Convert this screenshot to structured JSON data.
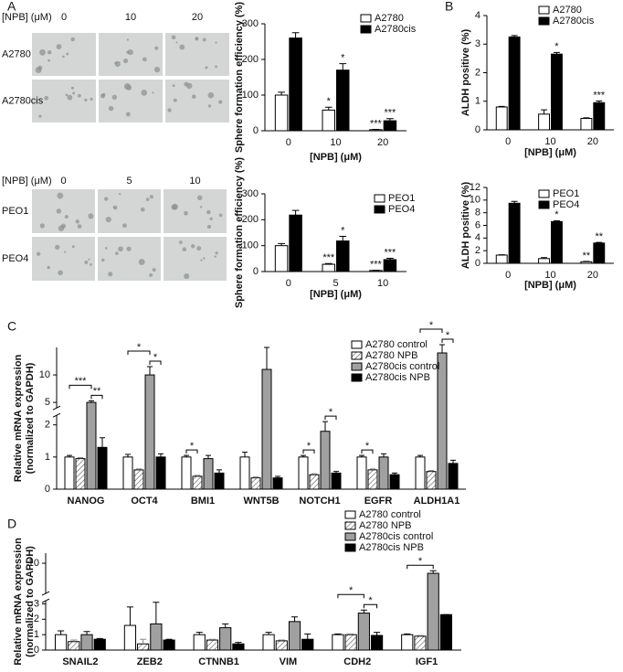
{
  "panel_labels": [
    "A",
    "B",
    "C",
    "D"
  ],
  "image_panels": [
    {
      "header": "[NPB] (μM)",
      "columns": [
        "0",
        "10",
        "20"
      ],
      "rows": [
        "A2780",
        "A2780cis"
      ]
    },
    {
      "header": "[NPB] (μM)",
      "columns": [
        "0",
        "5",
        "10"
      ],
      "rows": [
        "PEO1",
        "PEO4"
      ]
    }
  ],
  "chart_data": [
    {
      "type": "bar",
      "ylabel": "Sphere formation efficiency (%)",
      "xlabel": "[NPB] (μM)",
      "categories": [
        "0",
        "10",
        "20"
      ],
      "series": [
        {
          "name": "A2780",
          "color": "#ffffff",
          "values": [
            100,
            58,
            3
          ],
          "errors": [
            8,
            8,
            1
          ],
          "significance": [
            null,
            "*",
            "***"
          ]
        },
        {
          "name": "A2780cis",
          "color": "#000000",
          "values": [
            260,
            170,
            28
          ],
          "errors": [
            15,
            18,
            6
          ],
          "significance": [
            null,
            "*",
            "***"
          ]
        }
      ],
      "ylim": [
        0,
        300
      ],
      "yticks": [
        0,
        100,
        200,
        300
      ],
      "legend": "upper right"
    },
    {
      "type": "bar",
      "ylabel": "ALDH positive (%)",
      "xlabel": "[NPB] (μM)",
      "categories": [
        "0",
        "10",
        "20"
      ],
      "series": [
        {
          "name": "A2780",
          "color": "#ffffff",
          "values": [
            0.8,
            0.55,
            0.4
          ],
          "errors": [
            0.02,
            0.15,
            0.02
          ],
          "significance": [
            null,
            null,
            null
          ]
        },
        {
          "name": "A2780cis",
          "color": "#000000",
          "values": [
            3.25,
            2.65,
            0.95
          ],
          "errors": [
            0.05,
            0.06,
            0.06
          ],
          "significance": [
            null,
            "*",
            "***"
          ]
        }
      ],
      "ylim": [
        0,
        4
      ],
      "yticks": [
        0,
        1,
        2,
        3,
        4
      ],
      "legend": "upper right"
    },
    {
      "type": "bar",
      "ylabel": "Sphere formation efficiency (%)",
      "xlabel": "[NPB] (μM)",
      "categories": [
        "0",
        "5",
        "10"
      ],
      "series": [
        {
          "name": "PEO1",
          "color": "#ffffff",
          "values": [
            100,
            28,
            4
          ],
          "errors": [
            8,
            3,
            1
          ],
          "significance": [
            null,
            "***",
            "***"
          ]
        },
        {
          "name": "PEO4",
          "color": "#000000",
          "values": [
            218,
            118,
            46
          ],
          "errors": [
            18,
            18,
            5
          ],
          "significance": [
            null,
            "*",
            "***"
          ]
        }
      ],
      "ylim": [
        0,
        300
      ],
      "yticks": [
        0,
        100,
        200,
        300
      ],
      "legend": "upper right"
    },
    {
      "type": "bar",
      "ylabel": "ALDH positive (%)",
      "xlabel": "[NPB] (μM)",
      "categories": [
        "0",
        "10",
        "20"
      ],
      "series": [
        {
          "name": "PEO1",
          "color": "#ffffff",
          "values": [
            1.3,
            0.75,
            0.25
          ],
          "errors": [
            0.05,
            0.15,
            0.05
          ],
          "significance": [
            null,
            null,
            "**"
          ]
        },
        {
          "name": "PEO4",
          "color": "#000000",
          "values": [
            9.5,
            6.6,
            3.2
          ],
          "errors": [
            0.3,
            0.15,
            0.1
          ],
          "significance": [
            null,
            "*",
            "**"
          ]
        }
      ],
      "ylim": [
        0,
        12
      ],
      "yticks": [
        0,
        2,
        4,
        6,
        8,
        10,
        12
      ],
      "legend": "upper right"
    },
    {
      "type": "bar",
      "ylabel": [
        "Relative mRNA expression",
        "(normalized to GAPDH)"
      ],
      "categories": [
        "NANOG",
        "OCT4",
        "BMI1",
        "WNT5B",
        "NOTCH1",
        "EGFR",
        "ALDH1A1"
      ],
      "series": [
        {
          "name": "A2780 control",
          "color": "#ffffff",
          "values": [
            1,
            1,
            1,
            1,
            1,
            1,
            1
          ],
          "errors": [
            0.05,
            0.08,
            0.05,
            0.15,
            0.05,
            0.05,
            0.05
          ]
        },
        {
          "name": "A2780 NPB",
          "color": "#ffffff",
          "hatch": true,
          "values": [
            0.95,
            0.6,
            0.4,
            0.35,
            0.45,
            0.6,
            0.55
          ],
          "errors": [
            0.03,
            0.03,
            0.03,
            0.03,
            0.03,
            0.03,
            0.03
          ]
        },
        {
          "name": "A2780cis control",
          "color": "#a0a0a0",
          "values": [
            5,
            10,
            0.95,
            11,
            1.8,
            1,
            14
          ],
          "errors": [
            0.3,
            1.5,
            0.1,
            4,
            0.3,
            0.1,
            1.5
          ]
        },
        {
          "name": "A2780cis NPB",
          "color": "#000000",
          "values": [
            1.3,
            1,
            0.5,
            0.35,
            0.5,
            0.45,
            0.8
          ],
          "errors": [
            0.3,
            0.1,
            0.1,
            0.05,
            0.05,
            0.05,
            0.1
          ]
        }
      ],
      "ylim": [
        0,
        15
      ],
      "ysegments": [
        [
          0,
          2.3
        ],
        [
          4,
          15
        ]
      ],
      "yticks": [
        0,
        1,
        2,
        5,
        10
      ],
      "legend": "upper right",
      "brackets": [
        {
          "category": 0,
          "from": 2,
          "to": 3,
          "text": "**"
        },
        {
          "category": 0,
          "from": 0,
          "to": 2,
          "text": "***"
        },
        {
          "category": 1,
          "from": 2,
          "to": 3,
          "text": "*"
        },
        {
          "category": 1,
          "from": 0,
          "to": 2,
          "text": "*"
        },
        {
          "category": 2,
          "from": 0,
          "to": 1,
          "text": "*"
        },
        {
          "category": 4,
          "from": 0,
          "to": 1,
          "text": "*"
        },
        {
          "category": 4,
          "from": 2,
          "to": 3,
          "text": "*"
        },
        {
          "category": 5,
          "from": 0,
          "to": 1,
          "text": "*"
        },
        {
          "category": 6,
          "from": 2,
          "to": 3,
          "text": "*"
        },
        {
          "category": 6,
          "from": 0,
          "to": 2,
          "text": "*"
        }
      ]
    },
    {
      "type": "bar",
      "ylabel": [
        "Relative mRNA expression",
        "(normalized to GAPDH)"
      ],
      "categories": [
        "SNAIL2",
        "ZEB2",
        "CTNNB1",
        "VIM",
        "CDH2",
        "IGF1"
      ],
      "series": [
        {
          "name": "A2780 control",
          "color": "#ffffff",
          "values": [
            1,
            1.6,
            1,
            1,
            1,
            1
          ],
          "errors": [
            0.25,
            1.2,
            0.15,
            0.15,
            0.05,
            0.05
          ]
        },
        {
          "name": "A2780 NPB",
          "color": "#ffffff",
          "hatch": true,
          "values": [
            0.55,
            0.4,
            0.65,
            0.6,
            1,
            0.9
          ],
          "errors": [
            0.1,
            0.3,
            0.05,
            0.05,
            0.05,
            0.05
          ]
        },
        {
          "name": "A2780cis control",
          "color": "#a0a0a0",
          "values": [
            1,
            1.7,
            1.45,
            1.85,
            2.4,
            8
          ],
          "errors": [
            0.2,
            1.4,
            0.25,
            0.3,
            0.2,
            0.5
          ]
        },
        {
          "name": "A2780cis NPB",
          "color": "#000000",
          "values": [
            0.7,
            0.65,
            0.4,
            0.7,
            0.95,
            2.3
          ],
          "errors": [
            0.05,
            0.05,
            0.1,
            0.35,
            0.2,
            0
          ]
        }
      ],
      "ylim": [
        0,
        12
      ],
      "ysegments": [
        [
          0,
          3.2
        ],
        [
          4,
          12
        ]
      ],
      "yticks": [
        0,
        1,
        2,
        3,
        10
      ],
      "legend": "upper right",
      "brackets": [
        {
          "category": 4,
          "from": 2,
          "to": 3,
          "text": "*"
        },
        {
          "category": 4,
          "from": 0,
          "to": 2,
          "text": "*"
        },
        {
          "category": 5,
          "from": 0,
          "to": 2,
          "text": "*"
        }
      ]
    }
  ]
}
